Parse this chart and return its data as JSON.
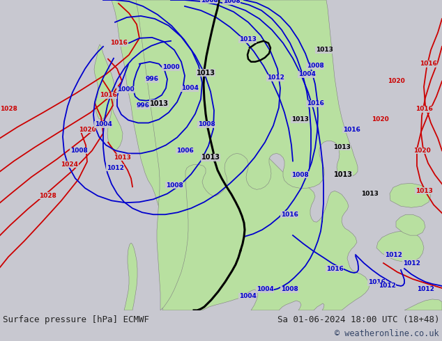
{
  "title_left": "Surface pressure [hPa] ECMWF",
  "title_right": "Sa 01-06-2024 18:00 UTC (18+48)",
  "copyright": "© weatheronline.co.uk",
  "bg_color": "#c8c8d0",
  "ocean_color": "#c8c8d0",
  "land_color": "#b8e0a0",
  "land_edge": "#808080",
  "isobar_blue": "#0000cc",
  "isobar_red": "#cc0000",
  "isobar_black": "#000000",
  "bottom_bar_color": "#dce8f0",
  "figsize": [
    6.34,
    4.9
  ],
  "dpi": 100
}
